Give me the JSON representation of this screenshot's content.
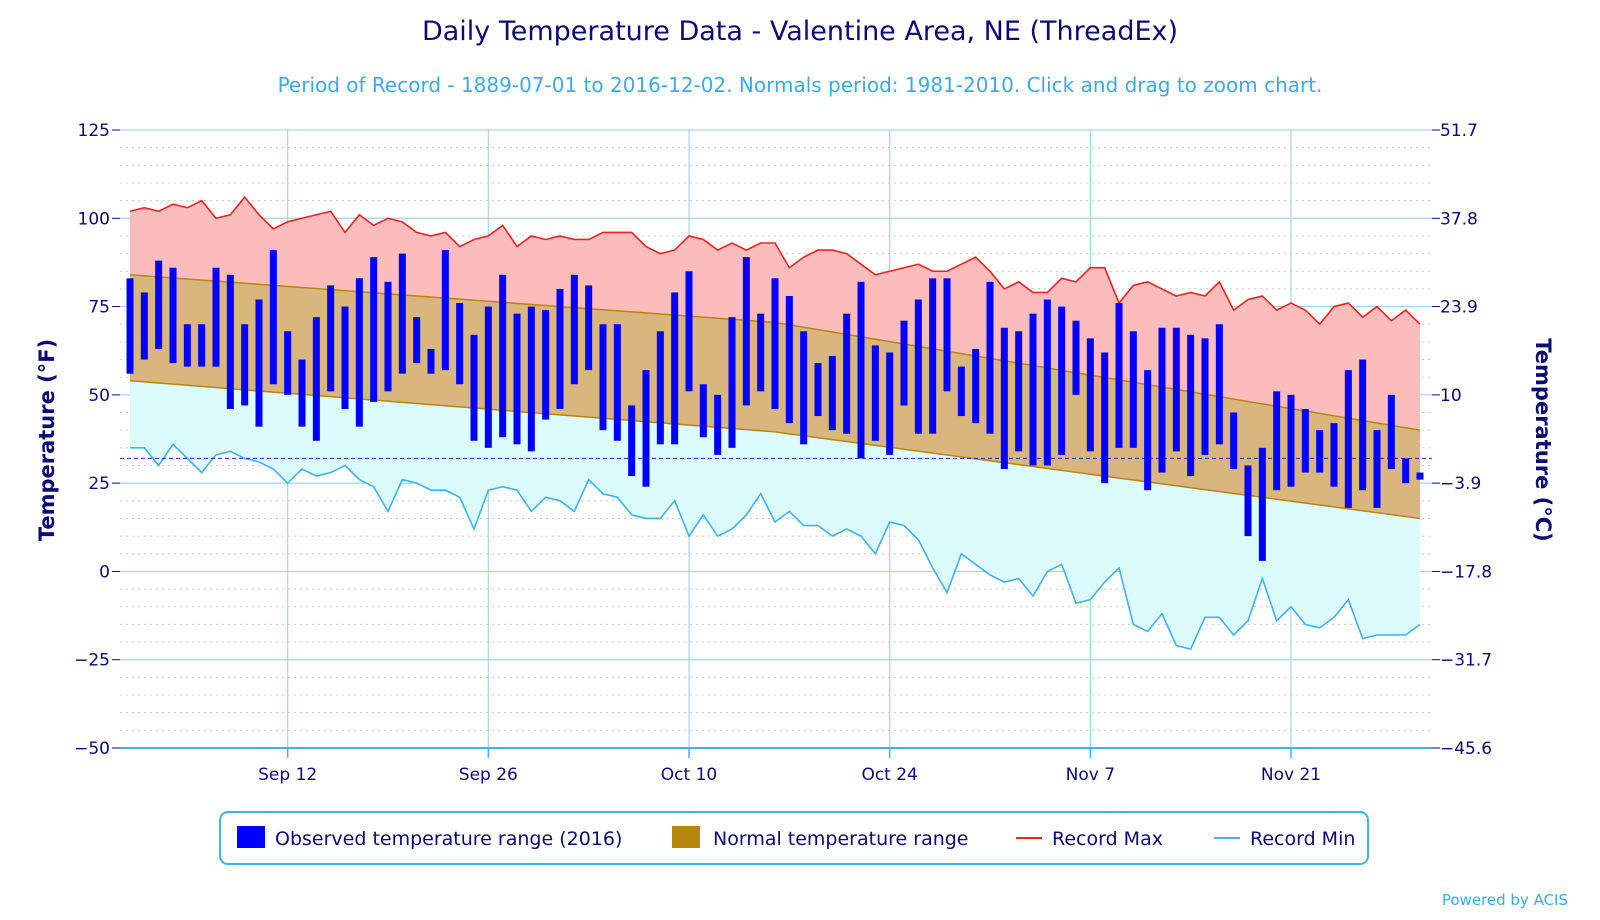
{
  "chart_data": {
    "type": "bar",
    "title": "Daily Temperature Data - Valentine Area, NE (ThreadEx)",
    "subtitle": "Period of Record - 1889-07-01 to 2016-12-02. Normals period: 1981-2010. Click and drag to zoom chart.",
    "ylabel": "Temperature (°F)",
    "ylabel_right": "Temperature (°C)",
    "ylim": [
      -50,
      125
    ],
    "yticks": [
      125,
      100,
      75,
      50,
      25,
      0,
      -25,
      -50
    ],
    "yticks_right": [
      "51.7",
      "37.8",
      "23.9",
      "10",
      "−3.9",
      "−17.8",
      "−31.7",
      "−45.6"
    ],
    "x_start": "2016-09-01",
    "x_end": "2016-11-30",
    "xtick_labels": [
      "Sep 12",
      "Sep 26",
      "Oct 10",
      "Oct 24",
      "Nov 7",
      "Nov 21"
    ],
    "xtick_dates": [
      "2016-09-12",
      "2016-09-26",
      "2016-10-10",
      "2016-10-24",
      "2016-11-07",
      "2016-11-21"
    ],
    "freezing_line": 32,
    "grid": true,
    "legend_position": "bottom",
    "legend": [
      {
        "label": "Observed temperature range (2016)",
        "color": "#0000ff",
        "kind": "bar"
      },
      {
        "label": "Normal temperature range",
        "color": "#b8860b",
        "kind": "bar"
      },
      {
        "label": "Record Max",
        "color": "#ee2222",
        "kind": "line"
      },
      {
        "label": "Record Min",
        "color": "#3fb2f0",
        "kind": "line"
      }
    ],
    "normal_range": {
      "high": [
        84,
        70.5,
        40
      ],
      "low": [
        54,
        39.5,
        15
      ],
      "dates": [
        "2016-09-01",
        "2016-10-16",
        "2016-11-30"
      ]
    },
    "record_max": [
      102,
      103,
      102,
      104,
      103,
      105,
      100,
      101,
      106,
      101,
      97,
      99,
      100,
      101,
      102,
      96,
      101,
      98,
      100,
      99,
      96,
      95,
      96,
      92,
      94,
      95,
      98,
      92,
      95,
      94,
      95,
      94,
      94,
      96,
      96,
      96,
      92,
      90,
      91,
      95,
      94,
      91,
      93,
      91,
      93,
      93,
      86,
      89,
      91,
      91,
      90,
      87,
      84,
      85,
      86,
      87,
      85,
      85,
      87,
      89,
      85,
      80,
      82,
      79,
      79,
      83,
      82,
      86,
      86,
      76,
      81,
      82,
      80,
      78,
      79,
      78,
      82,
      74,
      77,
      78,
      74,
      76,
      74,
      70,
      75,
      76,
      72,
      75,
      71,
      74,
      70
    ],
    "record_min": [
      35,
      35,
      30,
      36,
      32,
      28,
      33,
      34,
      32,
      31,
      29,
      25,
      29,
      27,
      28,
      30,
      26,
      24,
      17,
      26,
      25,
      23,
      23,
      21,
      12,
      23,
      24,
      23,
      17,
      21,
      20,
      17,
      26,
      22,
      21,
      16,
      15,
      15,
      20,
      10,
      16,
      10,
      12,
      16,
      22,
      14,
      17,
      13,
      13,
      10,
      12,
      10,
      5,
      14,
      13,
      9,
      1,
      -6,
      5,
      2,
      -1,
      -3,
      -2,
      -7,
      0,
      2,
      -9,
      -8,
      -3,
      1,
      -15,
      -17,
      -12,
      -21,
      -22,
      -13,
      -13,
      -18,
      -14,
      -2,
      -14,
      -10,
      -15,
      -16,
      -13,
      -8,
      -19,
      -18,
      -18,
      -18,
      -15
    ],
    "observed_high": [
      83,
      79,
      88,
      86,
      70,
      70,
      86,
      84,
      70,
      77,
      91,
      68,
      60,
      72,
      81,
      75,
      83,
      89,
      82,
      90,
      72,
      63,
      91,
      76,
      67,
      75,
      84,
      73,
      75,
      74,
      80,
      84,
      81,
      70,
      70,
      47,
      57,
      68,
      79,
      85,
      53,
      50,
      72,
      89,
      73,
      83,
      78,
      68,
      59,
      61,
      73,
      82,
      64,
      62,
      71,
      77,
      83,
      83,
      58,
      63,
      82,
      69,
      68,
      73,
      77,
      75,
      71,
      66,
      62,
      76,
      68,
      57,
      69,
      69,
      67,
      66,
      70,
      45,
      30,
      35,
      51,
      50,
      46,
      40,
      42,
      57,
      60,
      40,
      50,
      32,
      28
    ],
    "observed_low": [
      56,
      60,
      63,
      59,
      58,
      58,
      58,
      46,
      47,
      41,
      53,
      50,
      41,
      37,
      51,
      46,
      41,
      48,
      51,
      56,
      59,
      56,
      57,
      53,
      37,
      35,
      38,
      36,
      34,
      43,
      46,
      53,
      57,
      40,
      37,
      27,
      24,
      36,
      36,
      51,
      38,
      33,
      35,
      47,
      51,
      46,
      42,
      36,
      44,
      40,
      39,
      32,
      37,
      33,
      47,
      39,
      39,
      51,
      44,
      42,
      39,
      29,
      34,
      30,
      30,
      33,
      50,
      34,
      25,
      35,
      35,
      23,
      28,
      34,
      27,
      33,
      36,
      29,
      10,
      3,
      23,
      24,
      28,
      28,
      24,
      18,
      23,
      18,
      29,
      25,
      26
    ]
  }
}
